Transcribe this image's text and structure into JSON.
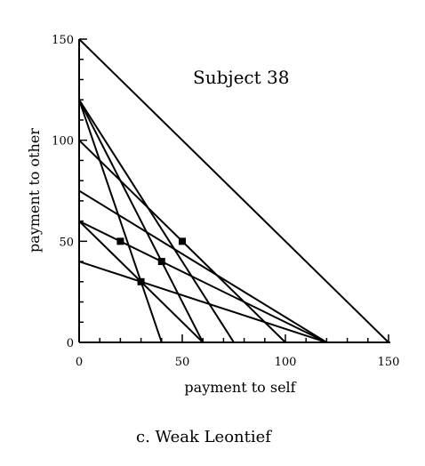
{
  "chart_data": {
    "type": "line",
    "title": "",
    "annotation": "Subject 38",
    "caption": "c. Weak Leontief",
    "xlabel": "payment to self",
    "ylabel": "payment to other",
    "xlim": [
      0,
      150
    ],
    "ylim": [
      0,
      150
    ],
    "xticks": [
      0,
      50,
      100,
      150
    ],
    "yticks": [
      0,
      50,
      100,
      150
    ],
    "grid": false,
    "budget_lines": [
      {
        "x_intercept": 150,
        "y_intercept": 150
      },
      {
        "x_intercept": 120,
        "y_intercept": 75
      },
      {
        "x_intercept": 120,
        "y_intercept": 60
      },
      {
        "x_intercept": 120,
        "y_intercept": 40
      },
      {
        "x_intercept": 100,
        "y_intercept": 100
      },
      {
        "x_intercept": 75,
        "y_intercept": 120
      },
      {
        "x_intercept": 60,
        "y_intercept": 120
      },
      {
        "x_intercept": 60,
        "y_intercept": 60
      },
      {
        "x_intercept": 40,
        "y_intercept": 120
      }
    ],
    "choices": [
      {
        "x": 20,
        "y": 50
      },
      {
        "x": 50,
        "y": 50
      },
      {
        "x": 40,
        "y": 40
      },
      {
        "x": 30,
        "y": 30
      }
    ]
  }
}
